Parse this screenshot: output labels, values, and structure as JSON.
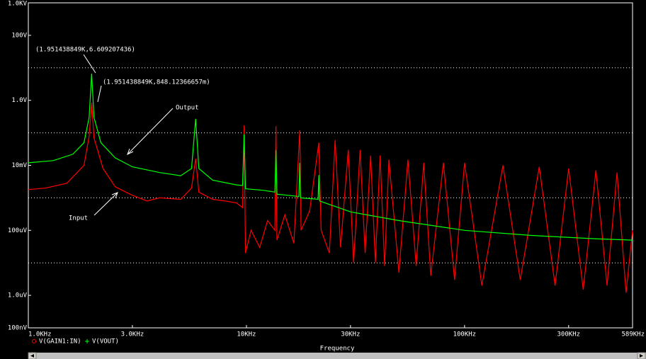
{
  "chart_data": {
    "type": "line",
    "xscale": "log",
    "yscale": "log",
    "xlabel": "Frequency",
    "xlim": [
      1000,
      589000
    ],
    "ylim": [
      1e-07,
      1000
    ],
    "xticks": [
      {
        "value": 1000,
        "label": "1.0KHz"
      },
      {
        "value": 3000,
        "label": "3.0KHz"
      },
      {
        "value": 10000,
        "label": "10KHz"
      },
      {
        "value": 30000,
        "label": "30KHz"
      },
      {
        "value": 100000,
        "label": "100KHz"
      },
      {
        "value": 300000,
        "label": "300KHz"
      },
      {
        "value": 589000,
        "label": "589KHz"
      }
    ],
    "yticks": [
      {
        "value": 1000,
        "label": "1.0KV"
      },
      {
        "value": 100,
        "label": "100V"
      },
      {
        "value": 1,
        "label": "1.0V"
      },
      {
        "value": 0.01,
        "label": "10mV"
      },
      {
        "value": 0.0001,
        "label": "100uV"
      },
      {
        "value": 1e-06,
        "label": "1.0uV"
      },
      {
        "value": 1e-07,
        "label": "100nV"
      }
    ],
    "ygrid": [
      10,
      0.1,
      0.001,
      1e-05
    ],
    "annotations": [
      "(1.951438849K,6.609207436)",
      "(1.951438849K,848.12366657m)",
      "Output",
      "Input"
    ],
    "series": [
      {
        "name": "V(GAIN1:IN)",
        "color": "#ff0000",
        "x": [
          1000,
          1200,
          1500,
          1800,
          1900,
          1951,
          2000,
          2200,
          2500,
          3000,
          3500,
          4000,
          5000,
          5600,
          5850,
          6050,
          7000,
          8000,
          9000,
          9600,
          9760,
          9900,
          10500,
          11500,
          12500,
          13500,
          13660,
          13800,
          15000,
          16500,
          17560,
          17800,
          19500,
          21470,
          22000,
          24000,
          25500,
          27000,
          29300,
          31000,
          33200,
          35000,
          37100,
          39000,
          41000,
          43000,
          45000,
          50000,
          55000,
          60000,
          65000,
          70000,
          80000,
          90000,
          100000,
          120000,
          150000,
          180000,
          220000,
          260000,
          300000,
          350000,
          400000,
          450000,
          500000,
          550000,
          589000
        ],
        "values": [
          0.0018,
          0.002,
          0.0028,
          0.01,
          0.08,
          0.848,
          0.07,
          0.008,
          0.0022,
          0.0012,
          0.0008,
          0.001,
          0.0009,
          0.002,
          0.016,
          0.0015,
          0.0009,
          0.0008,
          0.0007,
          0.0005,
          0.17,
          2e-05,
          0.0001,
          3e-05,
          0.0002,
          0.0001,
          0.16,
          5e-05,
          0.0003,
          4e-05,
          0.12,
          0.0001,
          0.0004,
          0.05,
          0.0001,
          2e-05,
          0.06,
          3e-05,
          0.03,
          1e-05,
          0.03,
          2e-05,
          0.02,
          1e-05,
          0.02,
          8e-06,
          0.015,
          5e-06,
          0.015,
          8e-06,
          0.012,
          4e-06,
          0.012,
          3e-06,
          0.012,
          2e-06,
          0.01,
          3e-06,
          0.009,
          2e-06,
          0.008,
          1.5e-06,
          0.007,
          2e-06,
          0.006,
          1.2e-06,
          0.0001
        ]
      },
      {
        "name": "V(VOUT)",
        "color": "#00ff00",
        "x": [
          1000,
          1300,
          1600,
          1800,
          1900,
          1951,
          2000,
          2150,
          2500,
          3000,
          4000,
          5000,
          5600,
          5850,
          6050,
          7000,
          9000,
          9600,
          9760,
          9900,
          12000,
          13500,
          13660,
          13800,
          17400,
          17560,
          17700,
          21300,
          21470,
          21650,
          30000,
          50000,
          100000,
          200000,
          400000,
          589000
        ],
        "values": [
          0.012,
          0.014,
          0.022,
          0.05,
          0.3,
          6.609207436,
          0.3,
          0.05,
          0.017,
          0.009,
          0.006,
          0.0048,
          0.008,
          0.27,
          0.008,
          0.0035,
          0.0025,
          0.0024,
          0.09,
          0.0019,
          0.0017,
          0.0015,
          0.03,
          0.0013,
          0.0011,
          0.012,
          0.001,
          0.0009,
          0.005,
          0.0008,
          0.00037,
          0.0002,
          0.0001,
          7e-05,
          5.5e-05,
          5e-05
        ]
      }
    ]
  }
}
